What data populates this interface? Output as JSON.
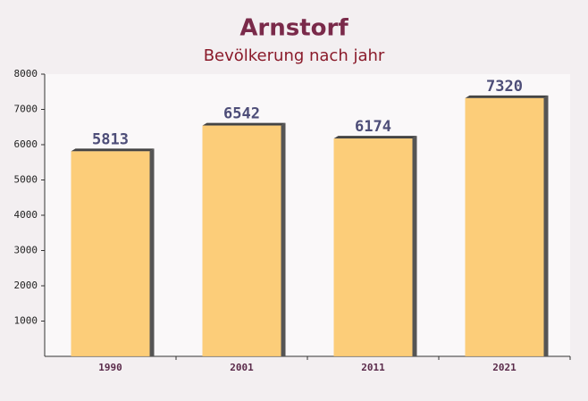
{
  "chart_data": {
    "type": "bar",
    "title": "Arnstorf",
    "subtitle": "Bevölkerung nach jahr",
    "categories": [
      "1990",
      "2001",
      "2011",
      "2021"
    ],
    "values": [
      5813,
      6542,
      6174,
      7320
    ],
    "color": "#fcc86a",
    "ylim": [
      0,
      8000
    ],
    "yticks": [
      1000,
      2000,
      3000,
      4000,
      5000,
      6000,
      7000,
      8000
    ],
    "grid": false
  }
}
